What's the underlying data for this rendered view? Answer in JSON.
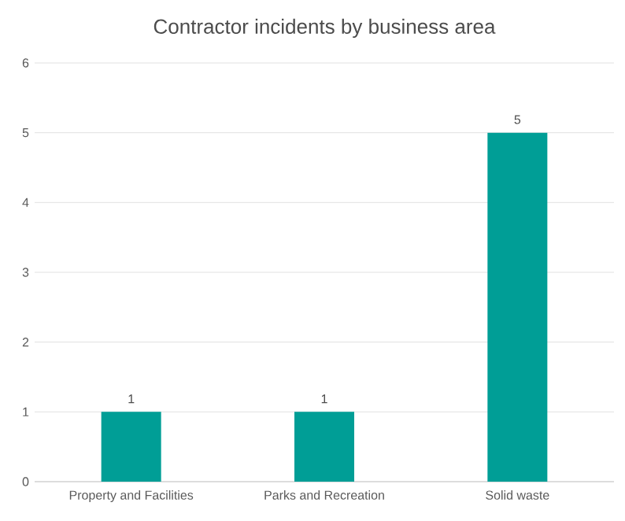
{
  "chart_data": {
    "type": "bar",
    "title": "Contractor incidents by business area",
    "categories": [
      "Property and Facilities",
      "Parks and Recreation",
      "Solid waste"
    ],
    "values": [
      1,
      1,
      5
    ],
    "color": "#009e96",
    "ylim": [
      0,
      6
    ],
    "yticks": [
      0,
      1,
      2,
      3,
      4,
      5,
      6
    ],
    "grid": "y",
    "data_labels": true
  }
}
